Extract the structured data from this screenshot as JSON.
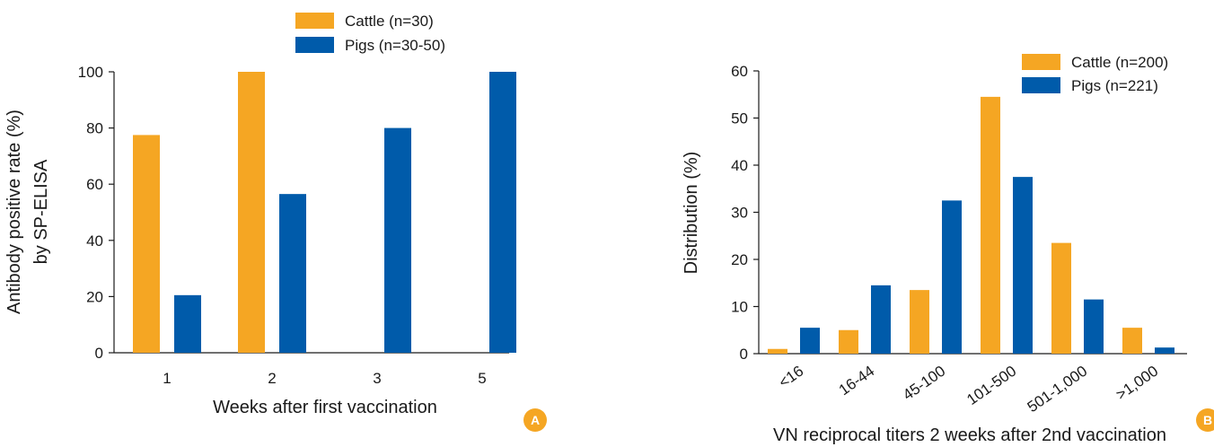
{
  "colors": {
    "cattle": "#F5A623",
    "pigs": "#005BAA",
    "axis": "#1a1a1a",
    "badge": "#F5A623"
  },
  "chart_data": [
    {
      "type": "bar",
      "panel_label": "A",
      "categories": [
        "1",
        "2",
        "3",
        "5"
      ],
      "series": [
        {
          "name": "Cattle (n=30)",
          "color": "#F5A623",
          "values": [
            77.5,
            100,
            null,
            null
          ]
        },
        {
          "name": "Pigs (n=30-50)",
          "color": "#005BAA",
          "values": [
            20.5,
            56.5,
            80,
            100
          ]
        }
      ],
      "xlabel": "Weeks after first vaccination",
      "ylabel_lines": [
        "Antibody positive rate (%)",
        "by SP-ELISA"
      ],
      "ylim": [
        0,
        100
      ],
      "yticks": [
        0,
        20,
        40,
        60,
        80,
        100
      ],
      "legend": "top-center"
    },
    {
      "type": "bar",
      "panel_label": "B",
      "categories": [
        "<16",
        "16-44",
        "45-100",
        "101-500",
        "501-1,000",
        ">1,000"
      ],
      "series": [
        {
          "name": "Cattle (n=200)",
          "color": "#F5A623",
          "values": [
            1,
            5,
            13.5,
            54.5,
            23.5,
            5.5
          ]
        },
        {
          "name": "Pigs (n=221)",
          "color": "#005BAA",
          "values": [
            5.5,
            14.5,
            32.5,
            37.5,
            11.5,
            1.3
          ]
        }
      ],
      "xlabel": "VN reciprocal titers 2 weeks after 2nd vaccination",
      "ylabel_lines": [
        "Distribution (%)"
      ],
      "ylim": [
        0,
        60
      ],
      "yticks": [
        0,
        10,
        20,
        30,
        40,
        50,
        60
      ],
      "legend": "top-right"
    }
  ]
}
